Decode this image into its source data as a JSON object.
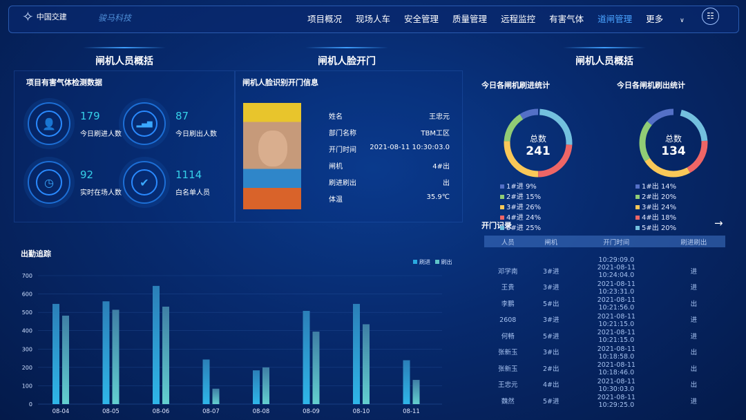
{
  "header": {
    "logo_text": "中国交建",
    "brand": "骏马科技",
    "nav": [
      "项目概况",
      "现场人车",
      "安全管理",
      "质量管理",
      "远程监控",
      "有害气体",
      "道闸管理"
    ],
    "active_nav": "道闸管理",
    "more": "更多",
    "menu_icon": "grid-list-icon"
  },
  "sections": {
    "left": "闸机人员概括",
    "middle": "闸机人脸开门",
    "right": "闸机人员概括"
  },
  "stats": {
    "title": "项目有害气体检测数据",
    "items": [
      {
        "value": "179",
        "label": "今日刷进人数",
        "icon": "person-icon"
      },
      {
        "value": "87",
        "label": "今日刷出人数",
        "icon": "bar-chart-icon"
      },
      {
        "value": "92",
        "label": "实时在场人数",
        "icon": "clock-icon"
      },
      {
        "value": "1114",
        "label": "白名单人员",
        "icon": "user-check-icon"
      }
    ]
  },
  "face": {
    "title": "闸机人脸识别开门信息",
    "rows": [
      {
        "k": "姓名",
        "v": "王忠元"
      },
      {
        "k": "部门名称",
        "v": "TBM工区"
      },
      {
        "k": "开门时间",
        "v": "2021-08-11 10:30:03.0"
      },
      {
        "k": "闸机",
        "v": "4#出"
      },
      {
        "k": "刷进刷出",
        "v": "出"
      },
      {
        "k": "体温",
        "v": "35.9℃"
      }
    ]
  },
  "donuts": [
    {
      "title": "今日各闸机刷进统计",
      "center_label": "总数",
      "total": "241",
      "items": [
        {
          "label": "1#进",
          "pct": 9,
          "text": "9%",
          "color": "#5470c6"
        },
        {
          "label": "2#进",
          "pct": 15,
          "text": "15%",
          "color": "#91cc75"
        },
        {
          "label": "3#进",
          "pct": 26,
          "text": "26%",
          "color": "#fac858"
        },
        {
          "label": "4#进",
          "pct": 24,
          "text": "24%",
          "color": "#ee6666"
        },
        {
          "label": "5#进",
          "pct": 25,
          "text": "25%",
          "color": "#73c0de"
        }
      ]
    },
    {
      "title": "今日各闸机刷出统计",
      "center_label": "总数",
      "total": "134",
      "items": [
        {
          "label": "1#出",
          "pct": 14,
          "text": "14%",
          "color": "#5470c6"
        },
        {
          "label": "2#出",
          "pct": 20,
          "text": "20%",
          "color": "#91cc75"
        },
        {
          "label": "3#出",
          "pct": 24,
          "text": "24%",
          "color": "#fac858"
        },
        {
          "label": "4#出",
          "pct": 18,
          "text": "18%",
          "color": "#ee6666"
        },
        {
          "label": "5#出",
          "pct": 20,
          "text": "20%",
          "color": "#73c0de"
        }
      ]
    }
  ],
  "records": {
    "title": "开门记录",
    "headers": [
      "人员",
      "闸机",
      "开门时间",
      "刷进刷出"
    ],
    "partial_time": "10:29:09.0",
    "rows": [
      [
        "邓学南",
        "3#进",
        "2021-08-11",
        "10:24:04.0",
        "进"
      ],
      [
        "王贵",
        "3#进",
        "2021-08-11",
        "10:23:31.0",
        "进"
      ],
      [
        "李鹏",
        "5#出",
        "2021-08-11",
        "10:21:56.0",
        "出"
      ],
      [
        "2608",
        "3#进",
        "2021-08-11",
        "10:21:15.0",
        "进"
      ],
      [
        "何畅",
        "5#进",
        "2021-08-11",
        "10:21:15.0",
        "进"
      ],
      [
        "张新玉",
        "3#出",
        "2021-08-11",
        "10:18:58.0",
        "出"
      ],
      [
        "张新玉",
        "2#出",
        "2021-08-11",
        "10:18:46.0",
        "出"
      ],
      [
        "王忠元",
        "4#出",
        "2021-08-11",
        "10:30:03.0",
        "出"
      ],
      [
        "魏然",
        "5#进",
        "2021-08-11",
        "10:29:25.0",
        "进"
      ]
    ]
  },
  "chart_data": {
    "type": "bar",
    "title": "出勤追踪",
    "categories": [
      "08-04",
      "08-05",
      "08-06",
      "08-07",
      "08-08",
      "08-09",
      "08-10",
      "08-11"
    ],
    "series": [
      {
        "name": "刷进",
        "values": [
          546,
          560,
          644,
          243,
          184,
          508,
          546,
          239
        ],
        "color": "#2aa9e0"
      },
      {
        "name": "刷出",
        "values": [
          482,
          514,
          531,
          84,
          200,
          395,
          435,
          132
        ],
        "color": "#5fc4c8"
      }
    ],
    "ylim": [
      0,
      700
    ],
    "yticks": [
      0,
      100,
      200,
      300,
      400,
      500,
      600,
      700
    ],
    "legend": "top-right",
    "grid": true
  }
}
